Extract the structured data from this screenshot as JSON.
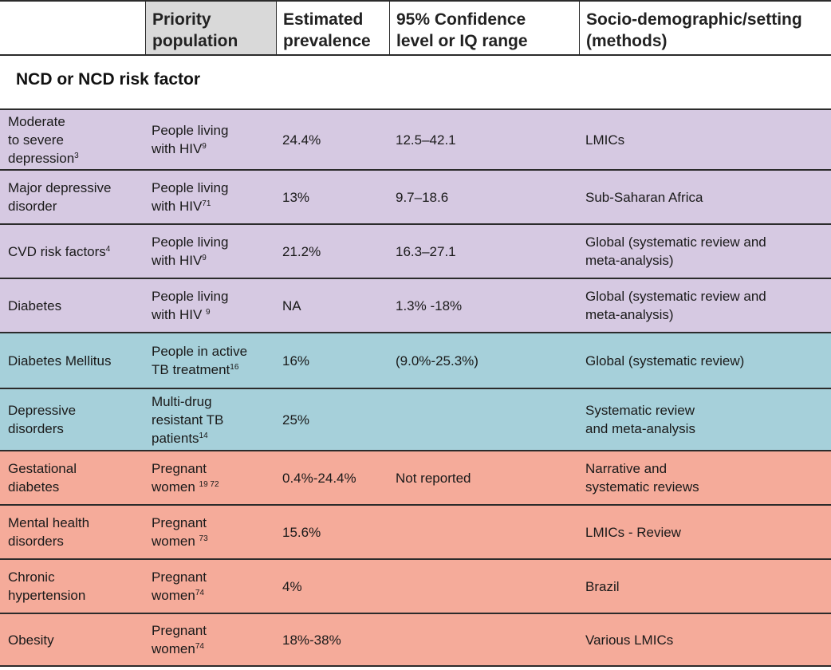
{
  "header": {
    "col1": "",
    "col2": [
      "Priority",
      "population"
    ],
    "col3": [
      "Estimated",
      "prevalence"
    ],
    "col4": [
      "95% Confidence",
      "level or IQ range"
    ],
    "col5": [
      "Socio-demographic/setting",
      "(methods)"
    ]
  },
  "section_title": "NCD or NCD risk factor",
  "colors": {
    "purple": "#d6c9e2",
    "blue": "#a6d0da",
    "salmon": "#f5ab9a",
    "header_gray": "#d9d9d9"
  },
  "rows": [
    {
      "ncd": [
        "Moderate",
        "to severe",
        "depression"
      ],
      "ncd_sup": "3",
      "population": [
        "People living",
        "with HIV"
      ],
      "pop_sup": "9",
      "prevalence": "24.4%",
      "ci": "12.5–42.1",
      "setting": [
        "LMICs"
      ],
      "color": "purple"
    },
    {
      "ncd": [
        "Major depressive",
        "disorder"
      ],
      "ncd_sup": "",
      "population": [
        "People living",
        "with HIV"
      ],
      "pop_sup": "71",
      "prevalence": "13%",
      "ci": "9.7–18.6",
      "setting": [
        "Sub-Saharan Africa"
      ],
      "color": "purple"
    },
    {
      "ncd": [
        "CVD risk factors"
      ],
      "ncd_sup": "4",
      "population": [
        "People living",
        "with HIV"
      ],
      "pop_sup": "9",
      "prevalence": "21.2%",
      "ci": "16.3–27.1",
      "setting": [
        "Global (systematic review and",
        "meta-analysis)"
      ],
      "color": "purple"
    },
    {
      "ncd": [
        "Diabetes"
      ],
      "ncd_sup": "",
      "population": [
        "People living",
        "with HIV "
      ],
      "pop_sup": "9",
      "prevalence": "NA",
      "ci": "1.3% -18%",
      "setting": [
        "Global (systematic review and",
        "meta-analysis)"
      ],
      "color": "purple"
    },
    {
      "ncd": [
        "Diabetes Mellitus"
      ],
      "ncd_sup": "",
      "population": [
        "People in active",
        "TB treatment"
      ],
      "pop_sup": "16",
      "prevalence": "16%",
      "ci": "(9.0%-25.3%)",
      "setting": [
        "Global (systematic review)"
      ],
      "color": "blue"
    },
    {
      "ncd": [
        "Depressive",
        "disorders"
      ],
      "ncd_sup": "",
      "population": [
        "Multi-drug",
        "resistant TB",
        "patients"
      ],
      "pop_sup": "14",
      "prevalence": "25%",
      "ci": "",
      "setting": [
        "Systematic review",
        "and meta-analysis"
      ],
      "color": "blue"
    },
    {
      "ncd": [
        "Gestational",
        "diabetes"
      ],
      "ncd_sup": "",
      "population": [
        "Pregnant",
        "women "
      ],
      "pop_sup": "19 72",
      "prevalence": "0.4%-24.4%",
      "ci": "Not reported",
      "setting": [
        "Narrative and",
        "systematic reviews"
      ],
      "color": "salmon"
    },
    {
      "ncd": [
        "Mental health",
        "disorders"
      ],
      "ncd_sup": "",
      "population": [
        "Pregnant",
        "women "
      ],
      "pop_sup": "73",
      "prevalence": "15.6%",
      "ci": "",
      "setting": [
        "LMICs - Review"
      ],
      "color": "salmon"
    },
    {
      "ncd": [
        "Chronic",
        "hypertension"
      ],
      "ncd_sup": "",
      "population": [
        "Pregnant",
        "women"
      ],
      "pop_sup": "74",
      "prevalence": "4%",
      "ci": "",
      "setting": [
        "Brazil"
      ],
      "color": "salmon"
    },
    {
      "ncd": [
        "Obesity"
      ],
      "ncd_sup": "",
      "population": [
        "Pregnant",
        "women"
      ],
      "pop_sup": "74",
      "prevalence": "18%-38%",
      "ci": "",
      "setting": [
        "Various LMICs"
      ],
      "color": "salmon"
    }
  ]
}
